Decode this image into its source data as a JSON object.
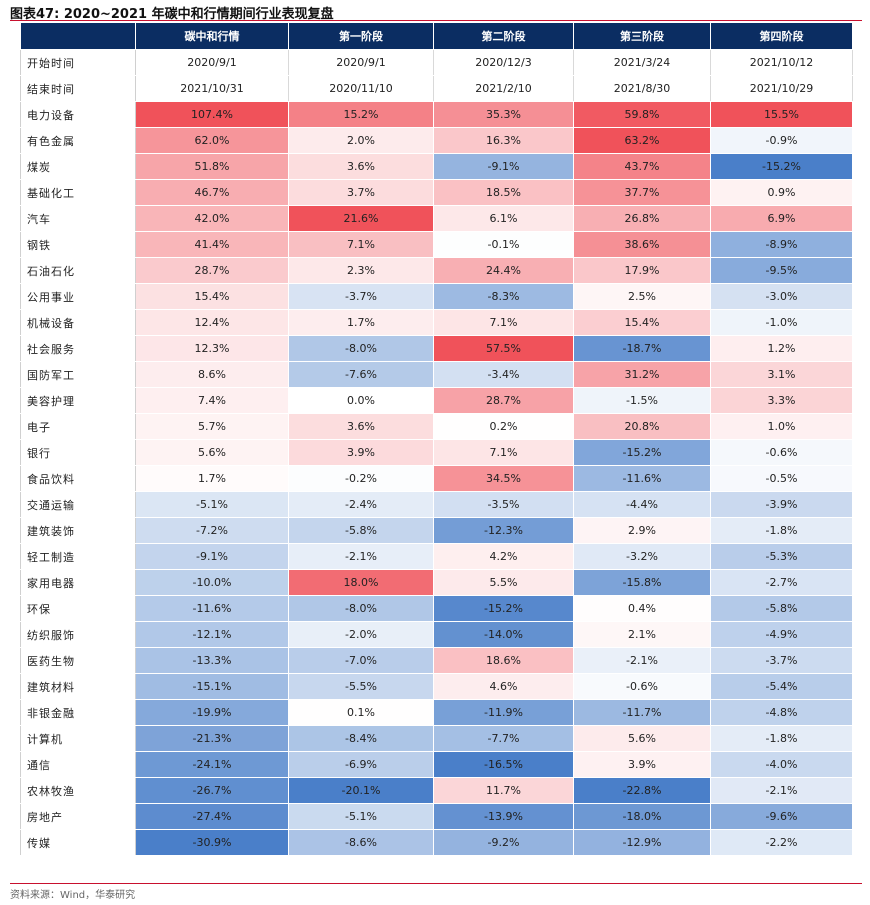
{
  "figure": {
    "title": "图表47:  2020~2021 年碳中和行情期间行业表现复盘",
    "source": "资料来源：Wind，华泰研究"
  },
  "colors": {
    "header_bg": "#0b2d62",
    "positive_max": "#f0525a",
    "negative_max": "#4a7fc9",
    "neutral": "#ffffff",
    "accent_rule": "#c8102e"
  },
  "chart_data": {
    "type": "heatmap",
    "columns": [
      "碳中和行情",
      "第一阶段",
      "第二阶段",
      "第三阶段",
      "第四阶段"
    ],
    "start_label": "开始时间",
    "end_label": "结束时间",
    "start_dates": [
      "2020/9/1",
      "2020/9/1",
      "2020/12/3",
      "2021/3/24",
      "2021/10/12"
    ],
    "end_dates": [
      "2021/10/31",
      "2020/11/10",
      "2021/2/10",
      "2021/8/30",
      "2021/10/29"
    ],
    "unit": "%",
    "rows": [
      {
        "industry": "电力设备",
        "values": [
          107.4,
          15.2,
          35.3,
          59.8,
          15.5
        ]
      },
      {
        "industry": "有色金属",
        "values": [
          62.0,
          2.0,
          16.3,
          63.2,
          -0.9
        ]
      },
      {
        "industry": "煤炭",
        "values": [
          51.8,
          3.6,
          -9.1,
          43.7,
          -15.2
        ]
      },
      {
        "industry": "基础化工",
        "values": [
          46.7,
          3.7,
          18.5,
          37.7,
          0.9
        ]
      },
      {
        "industry": "汽车",
        "values": [
          42.0,
          21.6,
          6.1,
          26.8,
          6.9
        ]
      },
      {
        "industry": "钢铁",
        "values": [
          41.4,
          7.1,
          -0.1,
          38.6,
          -8.9
        ]
      },
      {
        "industry": "石油石化",
        "values": [
          28.7,
          2.3,
          24.4,
          17.9,
          -9.5
        ]
      },
      {
        "industry": "公用事业",
        "values": [
          15.4,
          -3.7,
          -8.3,
          2.5,
          -3.0
        ]
      },
      {
        "industry": "机械设备",
        "values": [
          12.4,
          1.7,
          7.1,
          15.4,
          -1.0
        ]
      },
      {
        "industry": "社会服务",
        "values": [
          12.3,
          -8.0,
          57.5,
          -18.7,
          1.2
        ]
      },
      {
        "industry": "国防军工",
        "values": [
          8.6,
          -7.6,
          -3.4,
          31.2,
          3.1
        ]
      },
      {
        "industry": "美容护理",
        "values": [
          7.4,
          0.0,
          28.7,
          -1.5,
          3.3
        ]
      },
      {
        "industry": "电子",
        "values": [
          5.7,
          3.6,
          0.2,
          20.8,
          1.0
        ]
      },
      {
        "industry": "银行",
        "values": [
          5.6,
          3.9,
          7.1,
          -15.2,
          -0.6
        ]
      },
      {
        "industry": "食品饮料",
        "values": [
          1.7,
          -0.2,
          34.5,
          -11.6,
          -0.5
        ]
      },
      {
        "industry": "交通运输",
        "values": [
          -5.1,
          -2.4,
          -3.5,
          -4.4,
          -3.9
        ]
      },
      {
        "industry": "建筑装饰",
        "values": [
          -7.2,
          -5.8,
          -12.3,
          2.9,
          -1.8
        ]
      },
      {
        "industry": "轻工制造",
        "values": [
          -9.1,
          -2.1,
          4.2,
          -3.2,
          -5.3
        ]
      },
      {
        "industry": "家用电器",
        "values": [
          -10.0,
          18.0,
          5.5,
          -15.8,
          -2.7
        ]
      },
      {
        "industry": "环保",
        "values": [
          -11.6,
          -8.0,
          -15.2,
          0.4,
          -5.8
        ]
      },
      {
        "industry": "纺织服饰",
        "values": [
          -12.1,
          -2.0,
          -14.0,
          2.1,
          -4.9
        ]
      },
      {
        "industry": "医药生物",
        "values": [
          -13.3,
          -7.0,
          18.6,
          -2.1,
          -3.7
        ]
      },
      {
        "industry": "建筑材料",
        "values": [
          -15.1,
          -5.5,
          4.6,
          -0.6,
          -5.4
        ]
      },
      {
        "industry": "非银金融",
        "values": [
          -19.9,
          0.1,
          -11.9,
          -11.7,
          -4.8
        ]
      },
      {
        "industry": "计算机",
        "values": [
          -21.3,
          -8.4,
          -7.7,
          5.6,
          -1.8
        ]
      },
      {
        "industry": "通信",
        "values": [
          -24.1,
          -6.9,
          -16.5,
          3.9,
          -4.0
        ]
      },
      {
        "industry": "农林牧渔",
        "values": [
          -26.7,
          -20.1,
          11.7,
          -22.8,
          -2.1
        ]
      },
      {
        "industry": "房地产",
        "values": [
          -27.4,
          -5.1,
          -13.9,
          -18.0,
          -9.6
        ]
      },
      {
        "industry": "传媒",
        "values": [
          -30.9,
          -8.6,
          -9.2,
          -12.9,
          -2.2
        ]
      }
    ]
  }
}
